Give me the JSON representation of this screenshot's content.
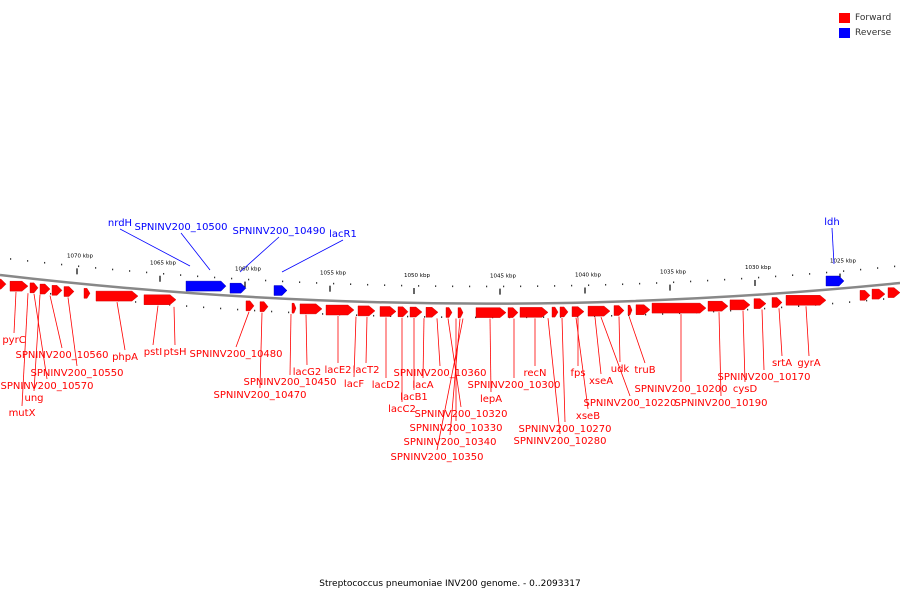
{
  "legend": {
    "forward_label": "Forward",
    "reverse_label": "Reverse",
    "forward_color": "#ff0000",
    "reverse_color": "#0000ff"
  },
  "caption": "Streptococcus pneumoniae INV200 genome. - 0..2093317",
  "axis_ticks": [
    "1070 kbp",
    "1065 kbp",
    "1060 kbp",
    "1055 kbp",
    "1050 kbp",
    "1045 kbp",
    "1040 kbp",
    "1035 kbp",
    "1030 kbp",
    "1025 kbp"
  ],
  "reverse_genes": [
    "nrdH",
    "SPNINV200_10500",
    "SPNINV200_10490",
    "lacR1",
    "ldh"
  ],
  "forward_genes": [
    "pyrC",
    "SPNINV200_10560",
    "SPNINV200_10570",
    "ung",
    "mutX",
    "SPNINV200_10550",
    "phpA",
    "pstI",
    "ptsH",
    "SPNINV200_10480",
    "SPNINV200_10470",
    "SPNINV200_10450",
    "lacG2",
    "lacE2",
    "lacF",
    "lacT2",
    "lacD2",
    "lacC2",
    "lacB1",
    "lacA",
    "SPNINV200_10360",
    "SPNINV200_10320",
    "SPNINV200_10330",
    "SPNINV200_10340",
    "SPNINV200_10350",
    "lepA",
    "SPNINV200_10300",
    "recN",
    "SPNINV200_10280",
    "SPNINV200_10270",
    "xseB",
    "fps",
    "xseA",
    "SPNINV200_10220",
    "udk",
    "truB",
    "SPNINV200_10200",
    "SPNINV200_10190",
    "cysD",
    "SPNINV200_10170",
    "srtA",
    "gyrA"
  ]
}
